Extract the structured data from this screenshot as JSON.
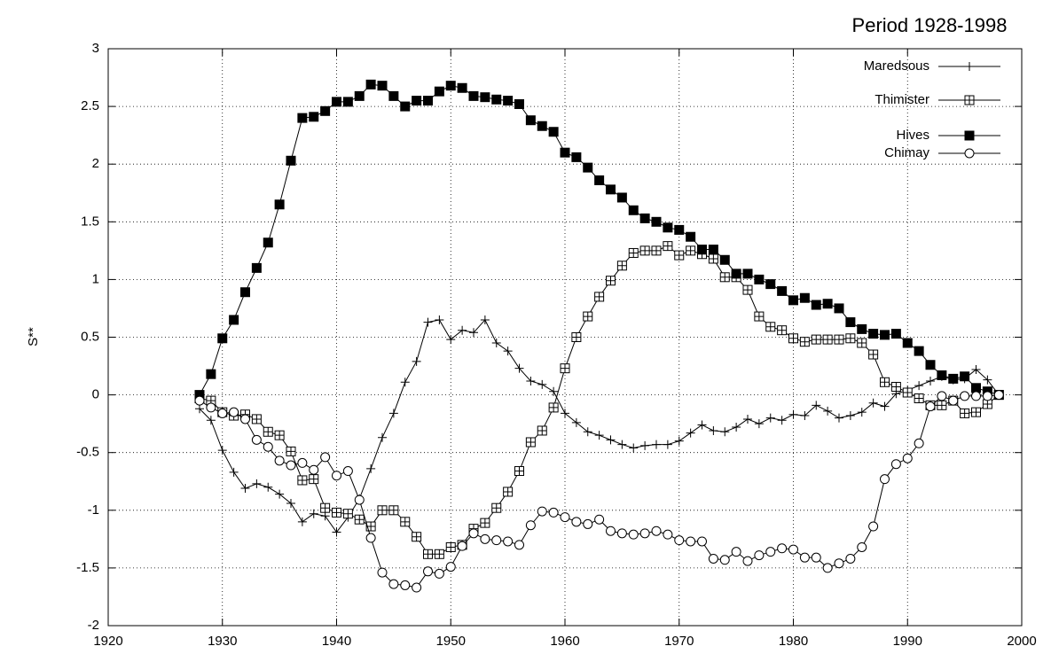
{
  "chart_data": {
    "type": "line",
    "title": "Period 1928-1998",
    "ylabel": "S**",
    "x": [
      1928,
      1929,
      1930,
      1931,
      1932,
      1933,
      1934,
      1935,
      1936,
      1937,
      1938,
      1939,
      1940,
      1941,
      1942,
      1943,
      1944,
      1945,
      1946,
      1947,
      1948,
      1949,
      1950,
      1951,
      1952,
      1953,
      1954,
      1955,
      1956,
      1957,
      1958,
      1959,
      1960,
      1961,
      1962,
      1963,
      1964,
      1965,
      1966,
      1967,
      1968,
      1969,
      1970,
      1971,
      1972,
      1973,
      1974,
      1975,
      1976,
      1977,
      1978,
      1979,
      1980,
      1981,
      1982,
      1983,
      1984,
      1985,
      1986,
      1987,
      1988,
      1989,
      1990,
      1991,
      1992,
      1993,
      1994,
      1995,
      1996,
      1997,
      1998
    ],
    "series": [
      {
        "name": "Maredsous",
        "color": "#000000",
        "marker": "plus",
        "values": [
          -0.12,
          -0.22,
          -0.48,
          -0.67,
          -0.81,
          -0.77,
          -0.8,
          -0.86,
          -0.94,
          -1.1,
          -1.03,
          -1.05,
          -1.19,
          -1.06,
          -0.9,
          -0.64,
          -0.37,
          -0.16,
          0.11,
          0.29,
          0.63,
          0.65,
          0.48,
          0.56,
          0.54,
          0.65,
          0.45,
          0.38,
          0.23,
          0.12,
          0.09,
          0.03,
          -0.16,
          -0.24,
          -0.32,
          -0.35,
          -0.39,
          -0.43,
          -0.46,
          -0.44,
          -0.43,
          -0.43,
          -0.4,
          -0.33,
          -0.26,
          -0.31,
          -0.32,
          -0.28,
          -0.21,
          -0.25,
          -0.2,
          -0.22,
          -0.17,
          -0.18,
          -0.09,
          -0.14,
          -0.2,
          -0.18,
          -0.15,
          -0.07,
          -0.1,
          0.01,
          0.04,
          0.08,
          0.12,
          0.16,
          0.13,
          0.14,
          0.22,
          0.13,
          0
        ]
      },
      {
        "name": "Thimister",
        "color": "#000000",
        "marker": "boxplus",
        "values": [
          -0.03,
          -0.05,
          -0.15,
          -0.18,
          -0.17,
          -0.21,
          -0.32,
          -0.35,
          -0.49,
          -0.74,
          -0.73,
          -0.98,
          -1.02,
          -1.03,
          -1.08,
          -1.14,
          -1.0,
          -1.0,
          -1.1,
          -1.23,
          -1.38,
          -1.38,
          -1.32,
          -1.3,
          -1.16,
          -1.11,
          -0.98,
          -0.84,
          -0.66,
          -0.41,
          -0.31,
          -0.11,
          0.23,
          0.5,
          0.68,
          0.85,
          0.99,
          1.12,
          1.23,
          1.25,
          1.25,
          1.29,
          1.21,
          1.25,
          1.22,
          1.18,
          1.02,
          1.02,
          0.91,
          0.68,
          0.59,
          0.56,
          0.49,
          0.46,
          0.48,
          0.48,
          0.48,
          0.49,
          0.45,
          0.35,
          0.11,
          0.07,
          0.02,
          -0.03,
          -0.09,
          -0.09,
          -0.05,
          -0.16,
          -0.15,
          -0.08,
          0
        ]
      },
      {
        "name": "Hives",
        "color": "#000000",
        "marker": "filled-square",
        "values": [
          0,
          0.18,
          0.49,
          0.65,
          0.89,
          1.1,
          1.32,
          1.65,
          2.03,
          2.4,
          2.41,
          2.46,
          2.54,
          2.54,
          2.59,
          2.69,
          2.68,
          2.59,
          2.5,
          2.55,
          2.55,
          2.63,
          2.68,
          2.66,
          2.59,
          2.58,
          2.56,
          2.55,
          2.52,
          2.38,
          2.33,
          2.28,
          2.1,
          2.06,
          1.97,
          1.86,
          1.78,
          1.71,
          1.6,
          1.53,
          1.5,
          1.45,
          1.43,
          1.37,
          1.26,
          1.26,
          1.17,
          1.05,
          1.05,
          1.0,
          0.96,
          0.9,
          0.82,
          0.84,
          0.78,
          0.79,
          0.75,
          0.63,
          0.57,
          0.53,
          0.52,
          0.53,
          0.45,
          0.38,
          0.26,
          0.17,
          0.14,
          0.16,
          0.06,
          0.03,
          0
        ]
      },
      {
        "name": "Chimay",
        "color": "#000000",
        "marker": "circle",
        "values": [
          -0.05,
          -0.11,
          -0.16,
          -0.15,
          -0.21,
          -0.39,
          -0.45,
          -0.57,
          -0.61,
          -0.59,
          -0.65,
          -0.54,
          -0.7,
          -0.66,
          -0.91,
          -1.24,
          -1.54,
          -1.64,
          -1.65,
          -1.67,
          -1.53,
          -1.55,
          -1.49,
          -1.31,
          -1.2,
          -1.25,
          -1.26,
          -1.27,
          -1.3,
          -1.13,
          -1.01,
          -1.02,
          -1.06,
          -1.1,
          -1.12,
          -1.08,
          -1.18,
          -1.2,
          -1.21,
          -1.2,
          -1.18,
          -1.21,
          -1.26,
          -1.27,
          -1.27,
          -1.42,
          -1.43,
          -1.36,
          -1.44,
          -1.39,
          -1.36,
          -1.33,
          -1.34,
          -1.41,
          -1.41,
          -1.5,
          -1.46,
          -1.42,
          -1.32,
          -1.14,
          -0.73,
          -0.6,
          -0.55,
          -0.42,
          -0.1,
          -0.01,
          -0.05,
          -0.01,
          -0.01,
          -0.01,
          0
        ]
      }
    ],
    "xlim": [
      1920,
      2000
    ],
    "xticks": [
      1920,
      1930,
      1940,
      1950,
      1960,
      1970,
      1980,
      1990,
      2000
    ],
    "ylim": [
      -2,
      3
    ],
    "yticks": [
      -2,
      -1.5,
      -1,
      -0.5,
      0,
      0.5,
      1,
      1.5,
      2,
      2.5,
      3
    ],
    "grid": true,
    "legend": "top-right"
  }
}
